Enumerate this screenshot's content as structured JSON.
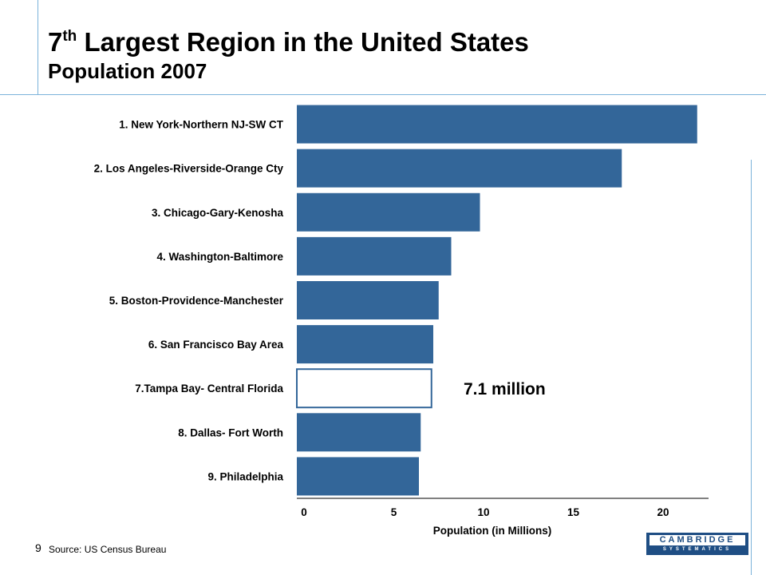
{
  "header": {
    "title_rank": "7",
    "title_suffix": "th",
    "title_rest": " Largest Region in the United States",
    "subtitle": "Population 2007"
  },
  "footer": {
    "page_number": "9",
    "source": "Source:  US Census Bureau",
    "logo_name": "CAMBRIDGE",
    "logo_tagline": "SYSTEMATICS"
  },
  "colors": {
    "bar_fill": "#336699",
    "highlight_fill": "#ffffff",
    "highlight_stroke": "#336699",
    "frame_line": "#7bb3da"
  },
  "chart_data": {
    "type": "bar",
    "orientation": "horizontal",
    "categories": [
      "1. New York-Northern NJ-SW CT",
      "2. Los Angeles-Riverside-Orange Cty",
      "3. Chicago-Gary-Kenosha",
      "4. Washington-Baltimore",
      "5. Boston-Providence-Manchester",
      "6. San Francisco Bay Area",
      "7.Tampa Bay- Central Florida",
      "8. Dallas- Fort Worth",
      "9. Philadelphia"
    ],
    "values": [
      21.9,
      17.7,
      9.8,
      8.2,
      7.5,
      7.2,
      7.1,
      6.5,
      6.4
    ],
    "highlight_index": 6,
    "annotation": "7.1 million",
    "xlabel": "Population (in Millions)",
    "xlim": [
      0,
      22.5
    ],
    "xticks": [
      "0",
      "5",
      "10",
      "15",
      "20"
    ],
    "grid": false,
    "legend": "none"
  }
}
